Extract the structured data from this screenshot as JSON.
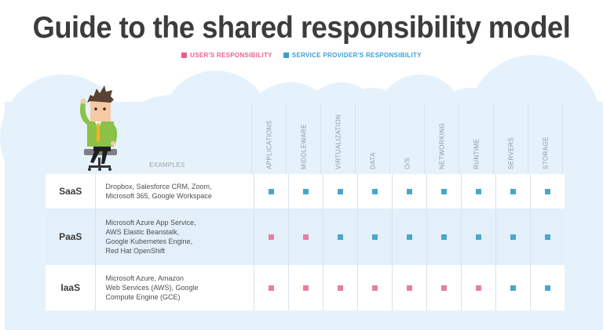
{
  "title": "Guide to the shared responsibility model",
  "legend": {
    "user": {
      "label": "USER'S RESPONSIBILITY",
      "color": "#e8608a"
    },
    "provider": {
      "label": "SERVICE PROVIDER'S RESPONSIBILITY",
      "color": "#3b9ed0"
    }
  },
  "marker_colors": {
    "user": "#e77fa3",
    "provider": "#48a6cc"
  },
  "examples_header": "EXAMPLES",
  "columns": [
    "APPLICATIONS",
    "MIDDLEWARE",
    "VIRTUALIZATION",
    "DATA",
    "O/S",
    "NETWORKING",
    "RUNTIME",
    "SERVERS",
    "STORAGE"
  ],
  "rows": [
    {
      "model": "SaaS",
      "examples": [
        "Dropbox, Salesforce CRM, Zoom,",
        "Microsoft 365, Google Workspace"
      ],
      "responsibility": [
        "provider",
        "provider",
        "provider",
        "provider",
        "provider",
        "provider",
        "provider",
        "provider",
        "provider"
      ]
    },
    {
      "model": "PaaS",
      "examples": [
        "Microsoft Azure App Service,",
        "AWS Elastic Beanstalk,",
        "Google Kubernetes Engine,",
        "Red Hat OpenShift"
      ],
      "responsibility": [
        "user",
        "user",
        "provider",
        "provider",
        "provider",
        "provider",
        "provider",
        "provider",
        "provider"
      ]
    },
    {
      "model": "IaaS",
      "examples": [
        "Microsoft Azure, Amazon",
        "Web Services (AWS), Google",
        "Compute Engine (GCE)"
      ],
      "responsibility": [
        "user",
        "user",
        "user",
        "user",
        "user",
        "user",
        "user",
        "provider",
        "provider"
      ]
    }
  ]
}
